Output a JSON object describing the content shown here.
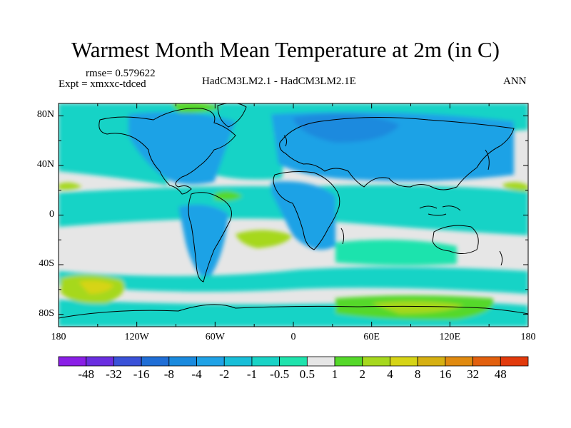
{
  "header": {
    "title": "Warmest Month Mean Temperature at 2m (in C)",
    "rmse": "rmse= 0.579622",
    "expt": "Expt = xmxxc-tdced",
    "comparison": "HadCM3LM2.1 - HadCM3LM2.1E",
    "period": "ANN"
  },
  "map": {
    "projection": "cylindrical-equidistant",
    "lon_range": [
      -180,
      180
    ],
    "lat_range": [
      -90,
      90
    ],
    "lat_tick_labels": [
      {
        "lat": 80,
        "label": "80N"
      },
      {
        "lat": 40,
        "label": "40N"
      },
      {
        "lat": 0,
        "label": "0"
      },
      {
        "lat": -40,
        "label": "40S"
      },
      {
        "lat": -80,
        "label": "80S"
      }
    ],
    "lon_tick_labels": [
      {
        "lon": -180,
        "label": "180"
      },
      {
        "lon": -120,
        "label": "120W"
      },
      {
        "lon": -60,
        "label": "60W"
      },
      {
        "lon": 0,
        "label": "0"
      },
      {
        "lon": 60,
        "label": "60E"
      },
      {
        "lon": 120,
        "label": "120E"
      },
      {
        "lon": 180,
        "label": "180"
      }
    ]
  },
  "colorbar": {
    "colors": [
      "#8a1fe6",
      "#6a2ee0",
      "#3a52d8",
      "#1f6ed6",
      "#1a8ade",
      "#1fa2e6",
      "#18bed8",
      "#19d3c6",
      "#1fe3ad",
      "#e6e6e6",
      "#55d82a",
      "#a6d81e",
      "#d6d416",
      "#d6b012",
      "#e08a10",
      "#e2600e",
      "#e23a0c"
    ],
    "labels": [
      "-48",
      "-32",
      "-16",
      "-8",
      "-4",
      "-2",
      "-1",
      "-0.5",
      "0.5",
      "1",
      "2",
      "4",
      "8",
      "16",
      "32",
      "48"
    ]
  },
  "legend_colors": {
    "ocean_bg": "#e6e6e6",
    "cooling_light": "#1fe3ad",
    "cooling_mid": "#19d3c6",
    "cooling_strong": "#1fa2e6",
    "cooling_stronger": "#1a8ade",
    "warming_light": "#55d82a",
    "warming_mid": "#a6d81e",
    "warming_strong": "#d6d416",
    "coastline": "#000000"
  }
}
